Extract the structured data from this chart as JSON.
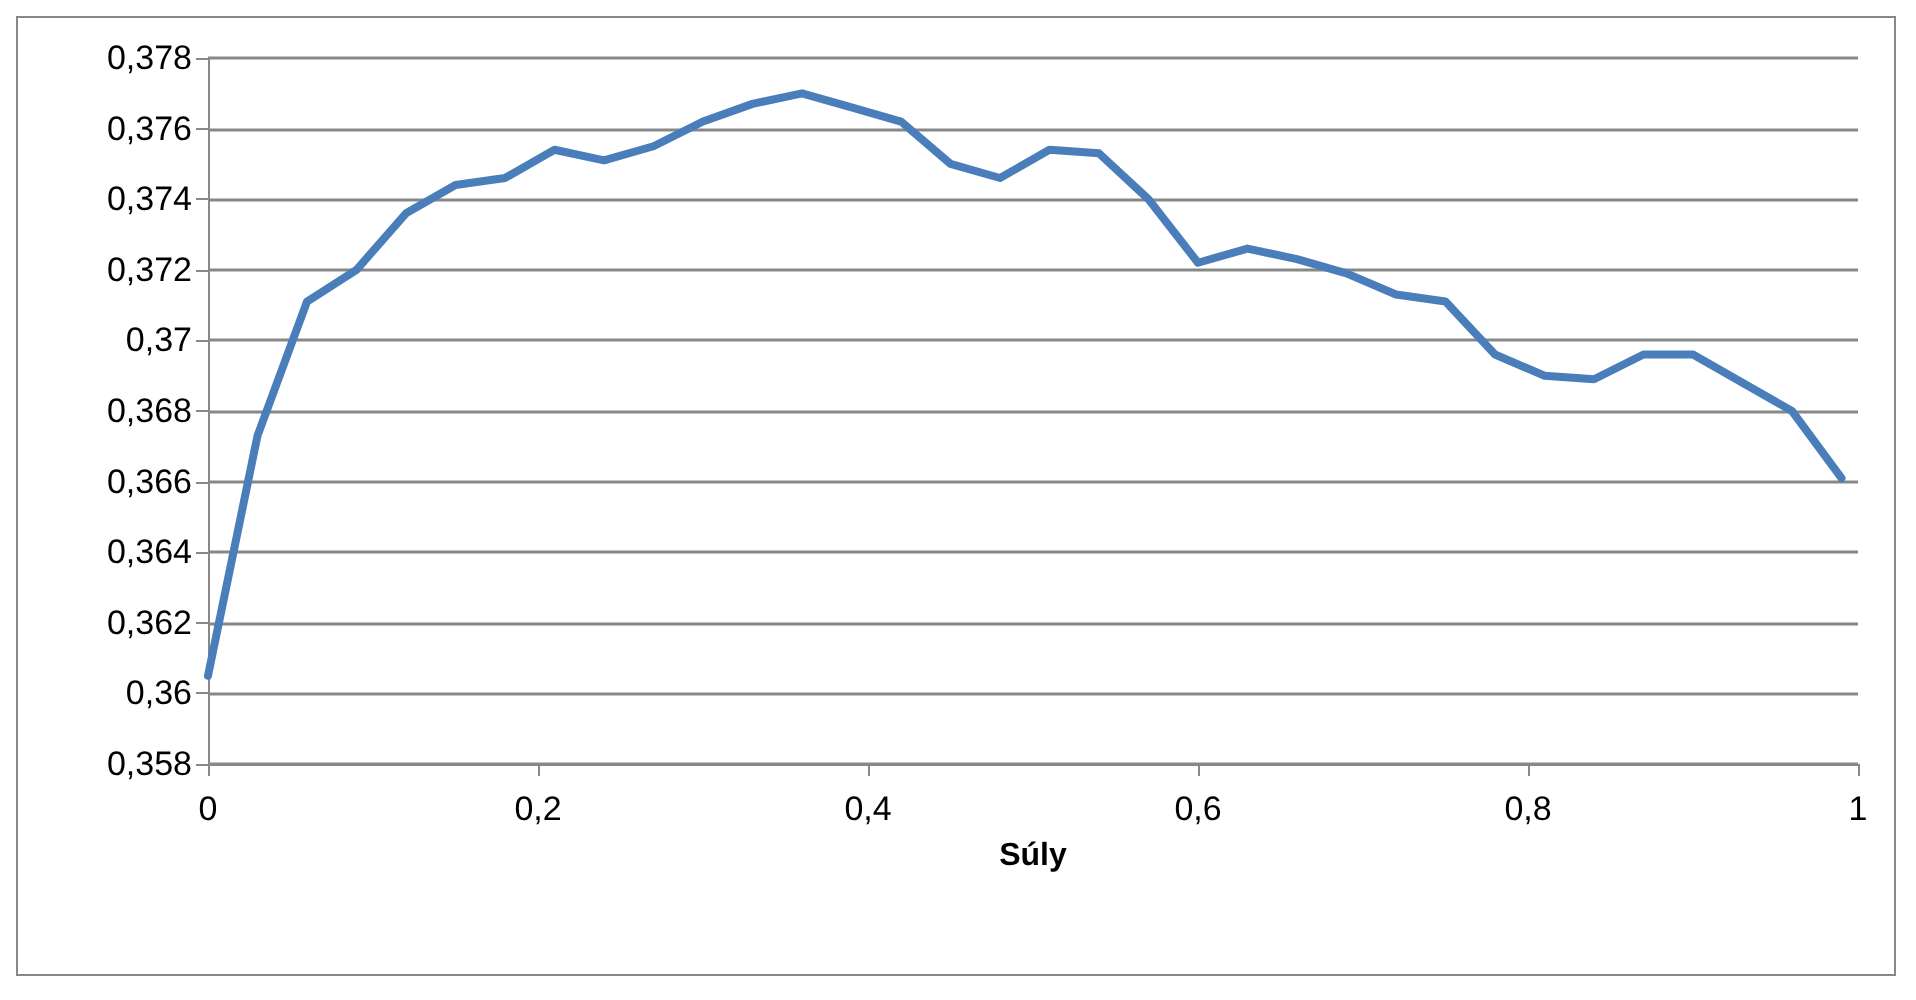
{
  "chart_data": {
    "type": "line",
    "xlabel": "Súly",
    "x": [
      0,
      0.03,
      0.06,
      0.09,
      0.12,
      0.15,
      0.18,
      0.21,
      0.24,
      0.27,
      0.3,
      0.33,
      0.36,
      0.39,
      0.42,
      0.45,
      0.48,
      0.51,
      0.54,
      0.57,
      0.6,
      0.63,
      0.66,
      0.69,
      0.72,
      0.75,
      0.78,
      0.81,
      0.84,
      0.87,
      0.9,
      0.93,
      0.96,
      0.99
    ],
    "series": [
      {
        "color": "#4a7ebb",
        "values": [
          0.3605,
          0.3673,
          0.3711,
          0.372,
          0.3736,
          0.3744,
          0.3746,
          0.3754,
          0.3751,
          0.3755,
          0.3762,
          0.3767,
          0.377,
          0.3766,
          0.3762,
          0.375,
          0.3746,
          0.3754,
          0.3753,
          0.374,
          0.3722,
          0.3726,
          0.3723,
          0.3719,
          0.3713,
          0.3711,
          0.3696,
          0.369,
          0.3689,
          0.3696,
          0.3696,
          0.3688,
          0.368,
          0.3661
        ]
      }
    ],
    "xlim": [
      0,
      1
    ],
    "xticks": [
      0,
      {
        "value": 0.2,
        "label": "0,2"
      },
      {
        "value": 0.4,
        "label": "0,4"
      },
      {
        "value": 0.6,
        "label": "0,6"
      },
      {
        "value": 0.8,
        "label": "0,8"
      },
      1
    ],
    "ylim": [
      0.358,
      0.378
    ],
    "yticks": [
      {
        "value": 0.358,
        "label": "0,358"
      },
      {
        "value": 0.36,
        "label": "0,36"
      },
      {
        "value": 0.362,
        "label": "0,362"
      },
      {
        "value": 0.364,
        "label": "0,364"
      },
      {
        "value": 0.366,
        "label": "0,366"
      },
      {
        "value": 0.368,
        "label": "0,368"
      },
      {
        "value": 0.37,
        "label": "0,37"
      },
      {
        "value": 0.372,
        "label": "0,372"
      },
      {
        "value": 0.374,
        "label": "0,374"
      },
      {
        "value": 0.376,
        "label": "0,376"
      },
      {
        "value": 0.378,
        "label": "0,378"
      }
    ],
    "grid": "y",
    "marker": "none",
    "line_style": "solid"
  }
}
